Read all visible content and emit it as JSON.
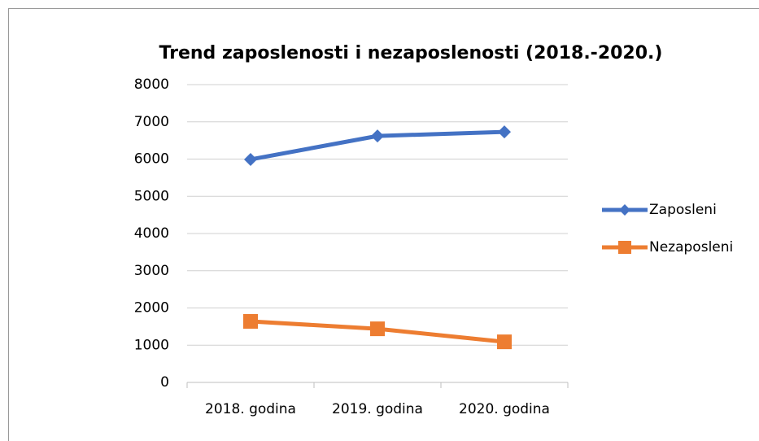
{
  "chart_data": {
    "type": "line",
    "title": "Trend zaposlenosti i nezaposlenosti (2018.-2020.)",
    "categories": [
      "2018. godina",
      "2019. godina",
      "2020. godina"
    ],
    "series": [
      {
        "name": "Zaposleni",
        "color": "#4472c4",
        "marker": "diamond",
        "values": [
          5990,
          6620,
          6730
        ]
      },
      {
        "name": "Nezaposleni",
        "color": "#ed7d31",
        "marker": "square",
        "values": [
          1640,
          1440,
          1090
        ]
      }
    ],
    "ylim": [
      0,
      8000
    ],
    "yticks": [
      0,
      1000,
      2000,
      3000,
      4000,
      5000,
      6000,
      7000,
      8000
    ],
    "grid": true,
    "legend": "right"
  }
}
